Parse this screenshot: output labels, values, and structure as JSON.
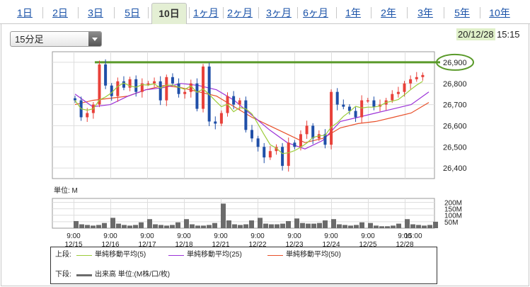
{
  "tabs": [
    {
      "label": "1日",
      "selected": false
    },
    {
      "label": "2日",
      "selected": false
    },
    {
      "label": "3日",
      "selected": false
    },
    {
      "label": "5日",
      "selected": false
    },
    {
      "label": "10日",
      "selected": true
    },
    {
      "label": "1ヶ月",
      "selected": false
    },
    {
      "label": "2ヶ月",
      "selected": false
    },
    {
      "label": "3ヶ月",
      "selected": false
    },
    {
      "label": "6ヶ月",
      "selected": false
    },
    {
      "label": "1年",
      "selected": false
    },
    {
      "label": "2年",
      "selected": false
    },
    {
      "label": "3年",
      "selected": false
    },
    {
      "label": "5年",
      "selected": false
    },
    {
      "label": "10年",
      "selected": false
    }
  ],
  "interval_select": {
    "value": "15分足"
  },
  "header": {
    "date": "20/12/28",
    "time": "15:15"
  },
  "colors": {
    "up": "#e8413a",
    "down": "#1f4fa8",
    "ma5": "#9ccc3a",
    "ma25": "#9c33d8",
    "ma50": "#e8502a",
    "volume": "#6b6b6b",
    "highlight": "#5a9a2a"
  },
  "chart_data": [
    {
      "type": "candlestick",
      "ylim": [
        26350,
        26950
      ],
      "y_ticks": [
        "26,400",
        "26,500",
        "26,600",
        "26,700",
        "26,800",
        "26,900"
      ],
      "y_tick_values": [
        26400,
        26500,
        26600,
        26700,
        26800,
        26900
      ],
      "highlight_level": 26900,
      "sessions": [
        "12/15",
        "12/16",
        "12/17",
        "12/18",
        "12/21",
        "12/22",
        "12/23",
        "12/24",
        "12/25",
        "12/28"
      ],
      "series": [
        {
          "name": "単純移動平均(5)",
          "legend": "単純移動平均(5)",
          "kind": "ma5"
        },
        {
          "name": "単純移動平均(25)",
          "legend": "単純移動平均(25)",
          "kind": "ma25"
        },
        {
          "name": "単純移動平均(50)",
          "legend": "単純移動平均(50)",
          "kind": "ma50"
        }
      ],
      "ma25_path": [
        26750,
        26690,
        26700,
        26740,
        26770,
        26780,
        26800,
        26790,
        26770,
        26720,
        26650,
        26580,
        26520,
        26490,
        26530,
        26620,
        26640,
        26660,
        26680,
        26700,
        26760
      ],
      "ma50_path": [
        26700,
        26720,
        26730,
        26740,
        26770,
        26790,
        26780,
        26760,
        26740,
        26690,
        26640,
        26600,
        26560,
        26520,
        26540,
        26590,
        26610,
        26620,
        26640,
        26660,
        26710
      ],
      "closes": [
        26720,
        26640,
        26660,
        26700,
        26890,
        26790,
        26740,
        26810,
        26780,
        26820,
        26760,
        26800,
        26800,
        26810,
        26720,
        26830,
        26800,
        26750,
        26760,
        26800,
        26680,
        26880,
        26620,
        26610,
        26660,
        26740,
        26700,
        26720,
        26580,
        26540,
        26500,
        26450,
        26480,
        26500,
        26410,
        26520,
        26500,
        26560,
        26600,
        26540,
        26560,
        26510,
        26760,
        26700,
        26690,
        26670,
        26640,
        26720,
        26720,
        26690,
        26700,
        26720,
        26750,
        26760,
        26800,
        26820,
        26830,
        26840
      ]
    },
    {
      "type": "bar",
      "unit_label": "単位: M",
      "y_ticks": [
        "200M",
        "150M",
        "100M",
        "50M"
      ],
      "y_tick_values": [
        200,
        150,
        100,
        50
      ],
      "ylim": [
        0,
        230
      ],
      "x_ticks": [
        {
          "time": "9:00",
          "date": "12/15"
        },
        {
          "time": "9:00",
          "date": "12/16"
        },
        {
          "time": "9:00",
          "date": "12/17"
        },
        {
          "time": "9:00",
          "date": "12/18"
        },
        {
          "time": "9:00",
          "date": "12/21"
        },
        {
          "time": "9:00",
          "date": "12/22"
        },
        {
          "time": "9:00",
          "date": "12/23"
        },
        {
          "time": "9:00",
          "date": "12/24"
        },
        {
          "time": "9:00",
          "date": "12/25"
        },
        {
          "time": "9:00",
          "date": "12/28"
        },
        {
          "time": "15:00",
          "date": ""
        }
      ],
      "session_volumes": [
        [
          55,
          30,
          25,
          20,
          25,
          40
        ],
        [
          80,
          35,
          25,
          20,
          25,
          45
        ],
        [
          70,
          30,
          25,
          20,
          25,
          45
        ],
        [
          70,
          30,
          20,
          20,
          25,
          40
        ],
        [
          190,
          60,
          30,
          25,
          30,
          60
        ],
        [
          80,
          35,
          30,
          30,
          35,
          55
        ],
        [
          75,
          40,
          35,
          35,
          40,
          60
        ],
        [
          70,
          30,
          25,
          20,
          25,
          45
        ],
        [
          40,
          20,
          15,
          15,
          20,
          35
        ],
        [
          70,
          30,
          25,
          20,
          25,
          50
        ]
      ]
    }
  ],
  "legend": {
    "upper_label": "上段:",
    "lower_label": "下段:",
    "ma5": "単純移動平均(5)",
    "ma25": "単純移動平均(25)",
    "ma50": "単純移動平均(50)",
    "volume": "出来高 単位:(M株/口/枚)"
  }
}
